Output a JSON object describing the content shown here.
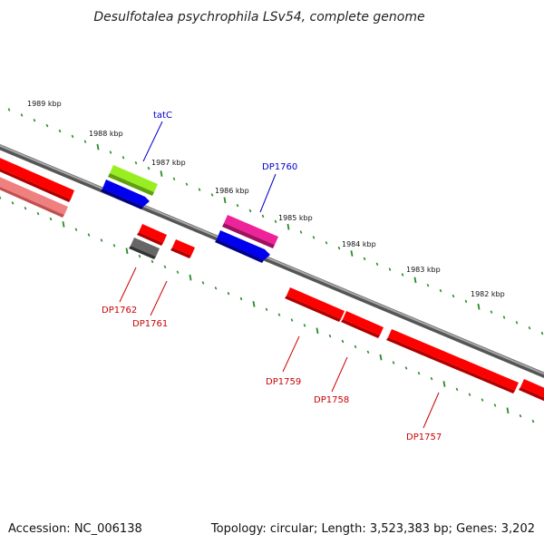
{
  "title": "Desulfotalea psychrophila LSv54, complete genome",
  "footer": {
    "accession": "Accession: NC_006138",
    "summary": "Topology: circular; Length: 3,523,383 bp; Genes: 3,202"
  },
  "kbp_ticks": [
    "1989 kbp",
    "1988 kbp",
    "1987 kbp",
    "1986 kbp",
    "1985 kbp",
    "1984 kbp",
    "1983 kbp",
    "1982 kbp"
  ],
  "gene_labels": {
    "tatC": "tatC",
    "DP1760": "DP1760",
    "DP1762": "DP1762",
    "DP1761": "DP1761",
    "DP1759": "DP1759",
    "DP1758": "DP1758",
    "DP1757": "DP1757"
  },
  "colors": {
    "backbone": "#888888",
    "tick_green": "#2a8a2a",
    "gene_red": "#ff0000",
    "gene_pink_faded": "#f08080",
    "gene_green": "#99ee22",
    "gene_blue": "#0000ee",
    "gene_magenta": "#ee2299",
    "gene_gray": "#666666",
    "label_blue": "#0000cc",
    "label_red": "#cc0000"
  }
}
